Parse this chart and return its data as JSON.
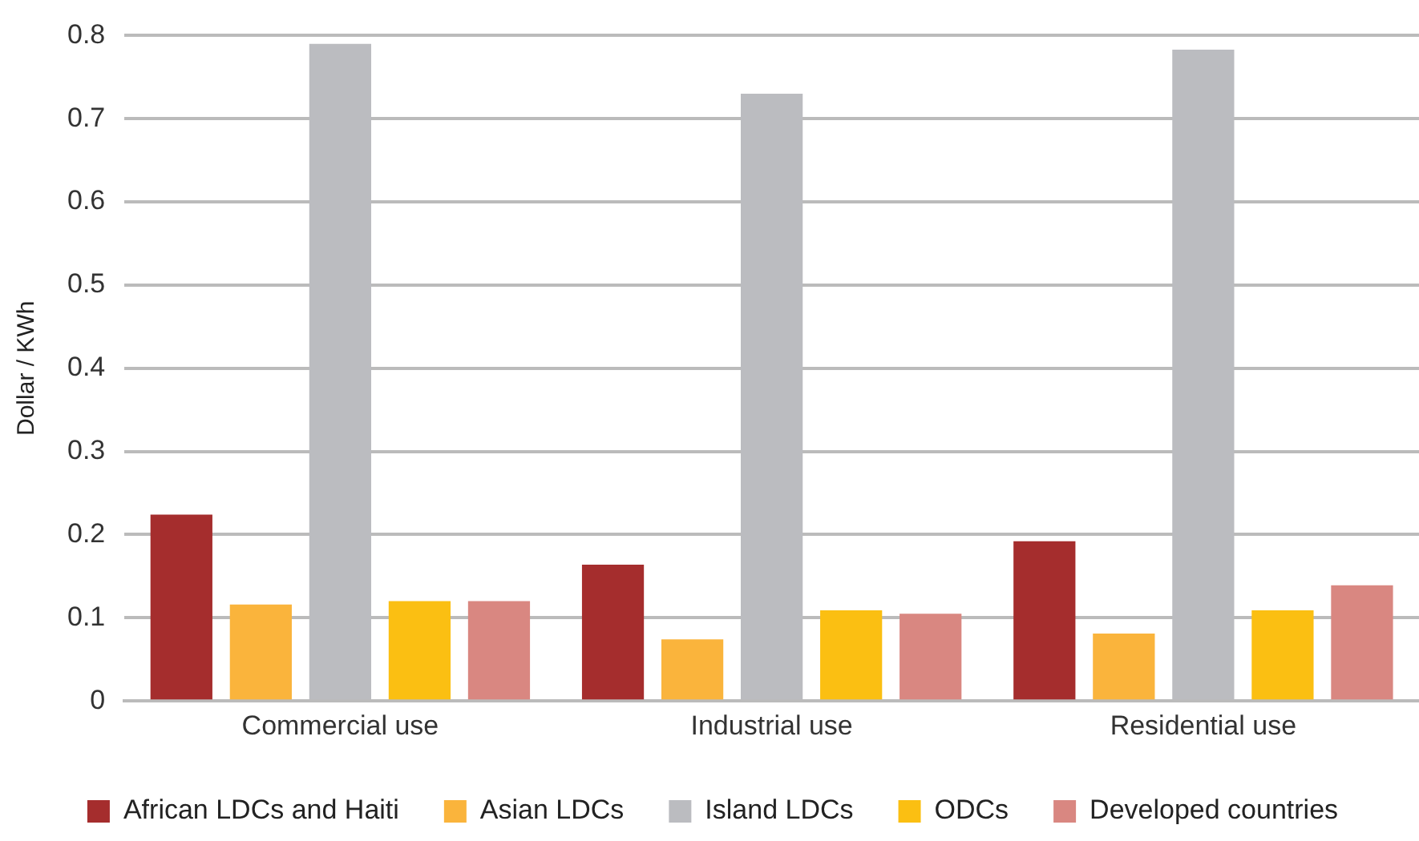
{
  "chart_data": {
    "type": "bar",
    "ylabel": "Dollar / KWh",
    "categories": [
      "Commercial use",
      "Industrial use",
      "Residential use"
    ],
    "series": [
      {
        "name": "African LDCs and Haiti",
        "color": "#a52d2d",
        "values": [
          0.224,
          0.164,
          0.192
        ]
      },
      {
        "name": "Asian LDCs",
        "color": "#fab43c",
        "values": [
          0.116,
          0.074,
          0.081
        ]
      },
      {
        "name": "Island LDCs",
        "color": "#bbbcc0",
        "values": [
          0.79,
          0.73,
          0.783
        ]
      },
      {
        "name": "ODCs",
        "color": "#fbbf12",
        "values": [
          0.12,
          0.109,
          0.109
        ]
      },
      {
        "name": "Developed countries",
        "color": "#d98781",
        "values": [
          0.12,
          0.105,
          0.139
        ]
      }
    ],
    "ylim": [
      0,
      0.8
    ],
    "yticks": [
      0,
      0.1,
      0.2,
      0.3,
      0.4,
      0.5,
      0.6,
      0.7,
      0.8
    ],
    "grid": "y",
    "legend": "bottom"
  }
}
